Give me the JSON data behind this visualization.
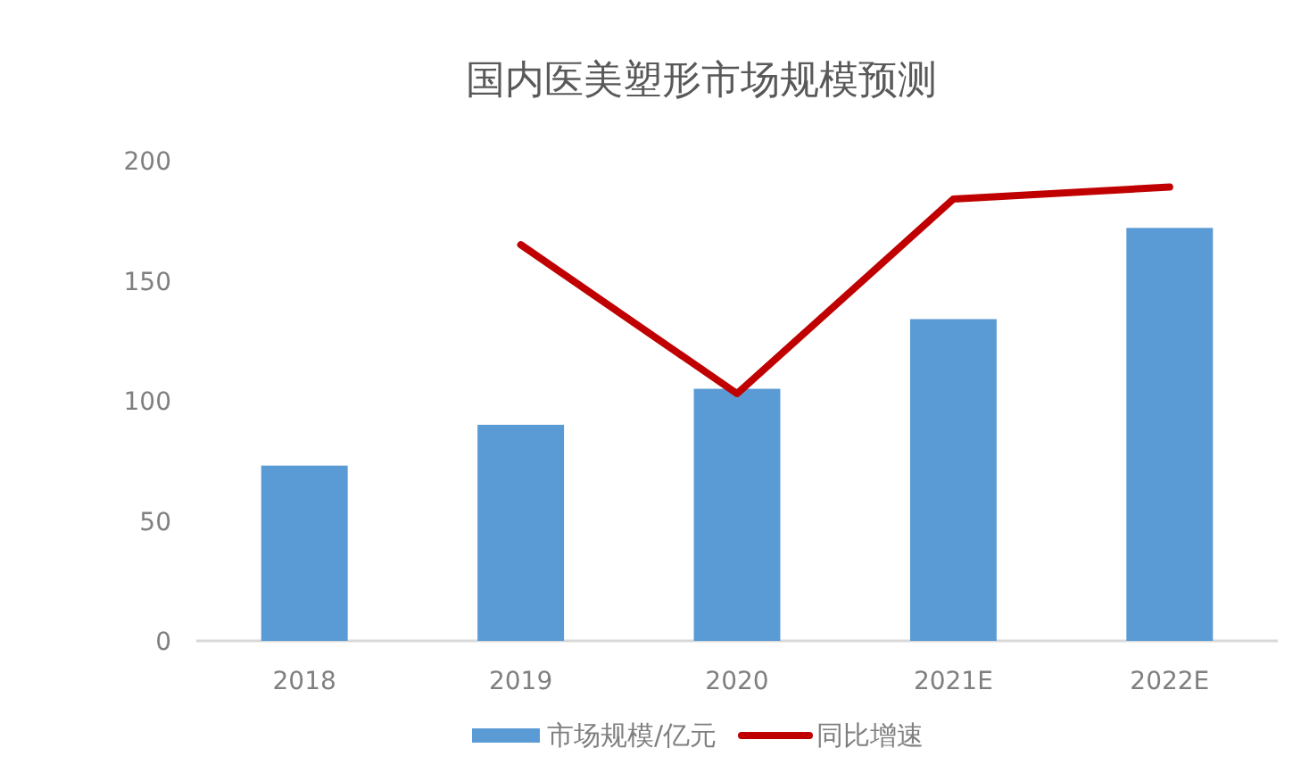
{
  "chart_data": {
    "type": "bar",
    "title": "国内医美塑形市场规模预测",
    "categories": [
      "2018",
      "2019",
      "2020",
      "2021E",
      "2022E"
    ],
    "series": [
      {
        "name": "市场规模/亿元",
        "color": "#5b9bd5",
        "values": [
          73,
          90,
          105,
          134,
          172
        ]
      },
      {
        "name": "同比增速",
        "type": "line",
        "color": "#c00000",
        "values": [
          null,
          165,
          103,
          184,
          189
        ]
      }
    ],
    "ylim": [
      0,
      200
    ],
    "yticks": [
      0,
      50,
      100,
      150,
      200
    ],
    "grid": false,
    "legend": "bottom"
  }
}
